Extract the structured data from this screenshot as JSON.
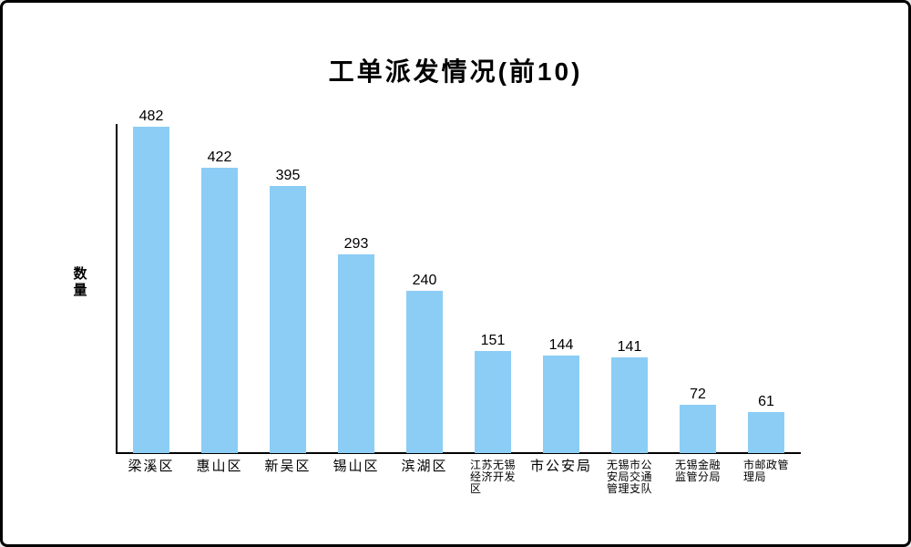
{
  "page": {
    "background": "#ffffff",
    "border_color": "#000000"
  },
  "chart_data": {
    "type": "bar",
    "title": "工单派发情况(前10)",
    "xlabel": "",
    "ylabel": "数量",
    "categories": [
      "梁溪区",
      "惠山区",
      "新吴区",
      "锡山区",
      "滨湖区",
      "江苏无锡经济开发区",
      "市公安局",
      "无锡市公安局交通管理支队",
      "无锡金融监管分局",
      "市邮政管理局"
    ],
    "values": [
      482,
      422,
      395,
      293,
      240,
      151,
      144,
      141,
      72,
      61
    ],
    "bar_color": "#8CCDF5",
    "axis_color": "#000000",
    "text_color": "#000000",
    "ylim": [
      0,
      490
    ],
    "grid": false,
    "legend": false,
    "value_labels_shown": true
  }
}
